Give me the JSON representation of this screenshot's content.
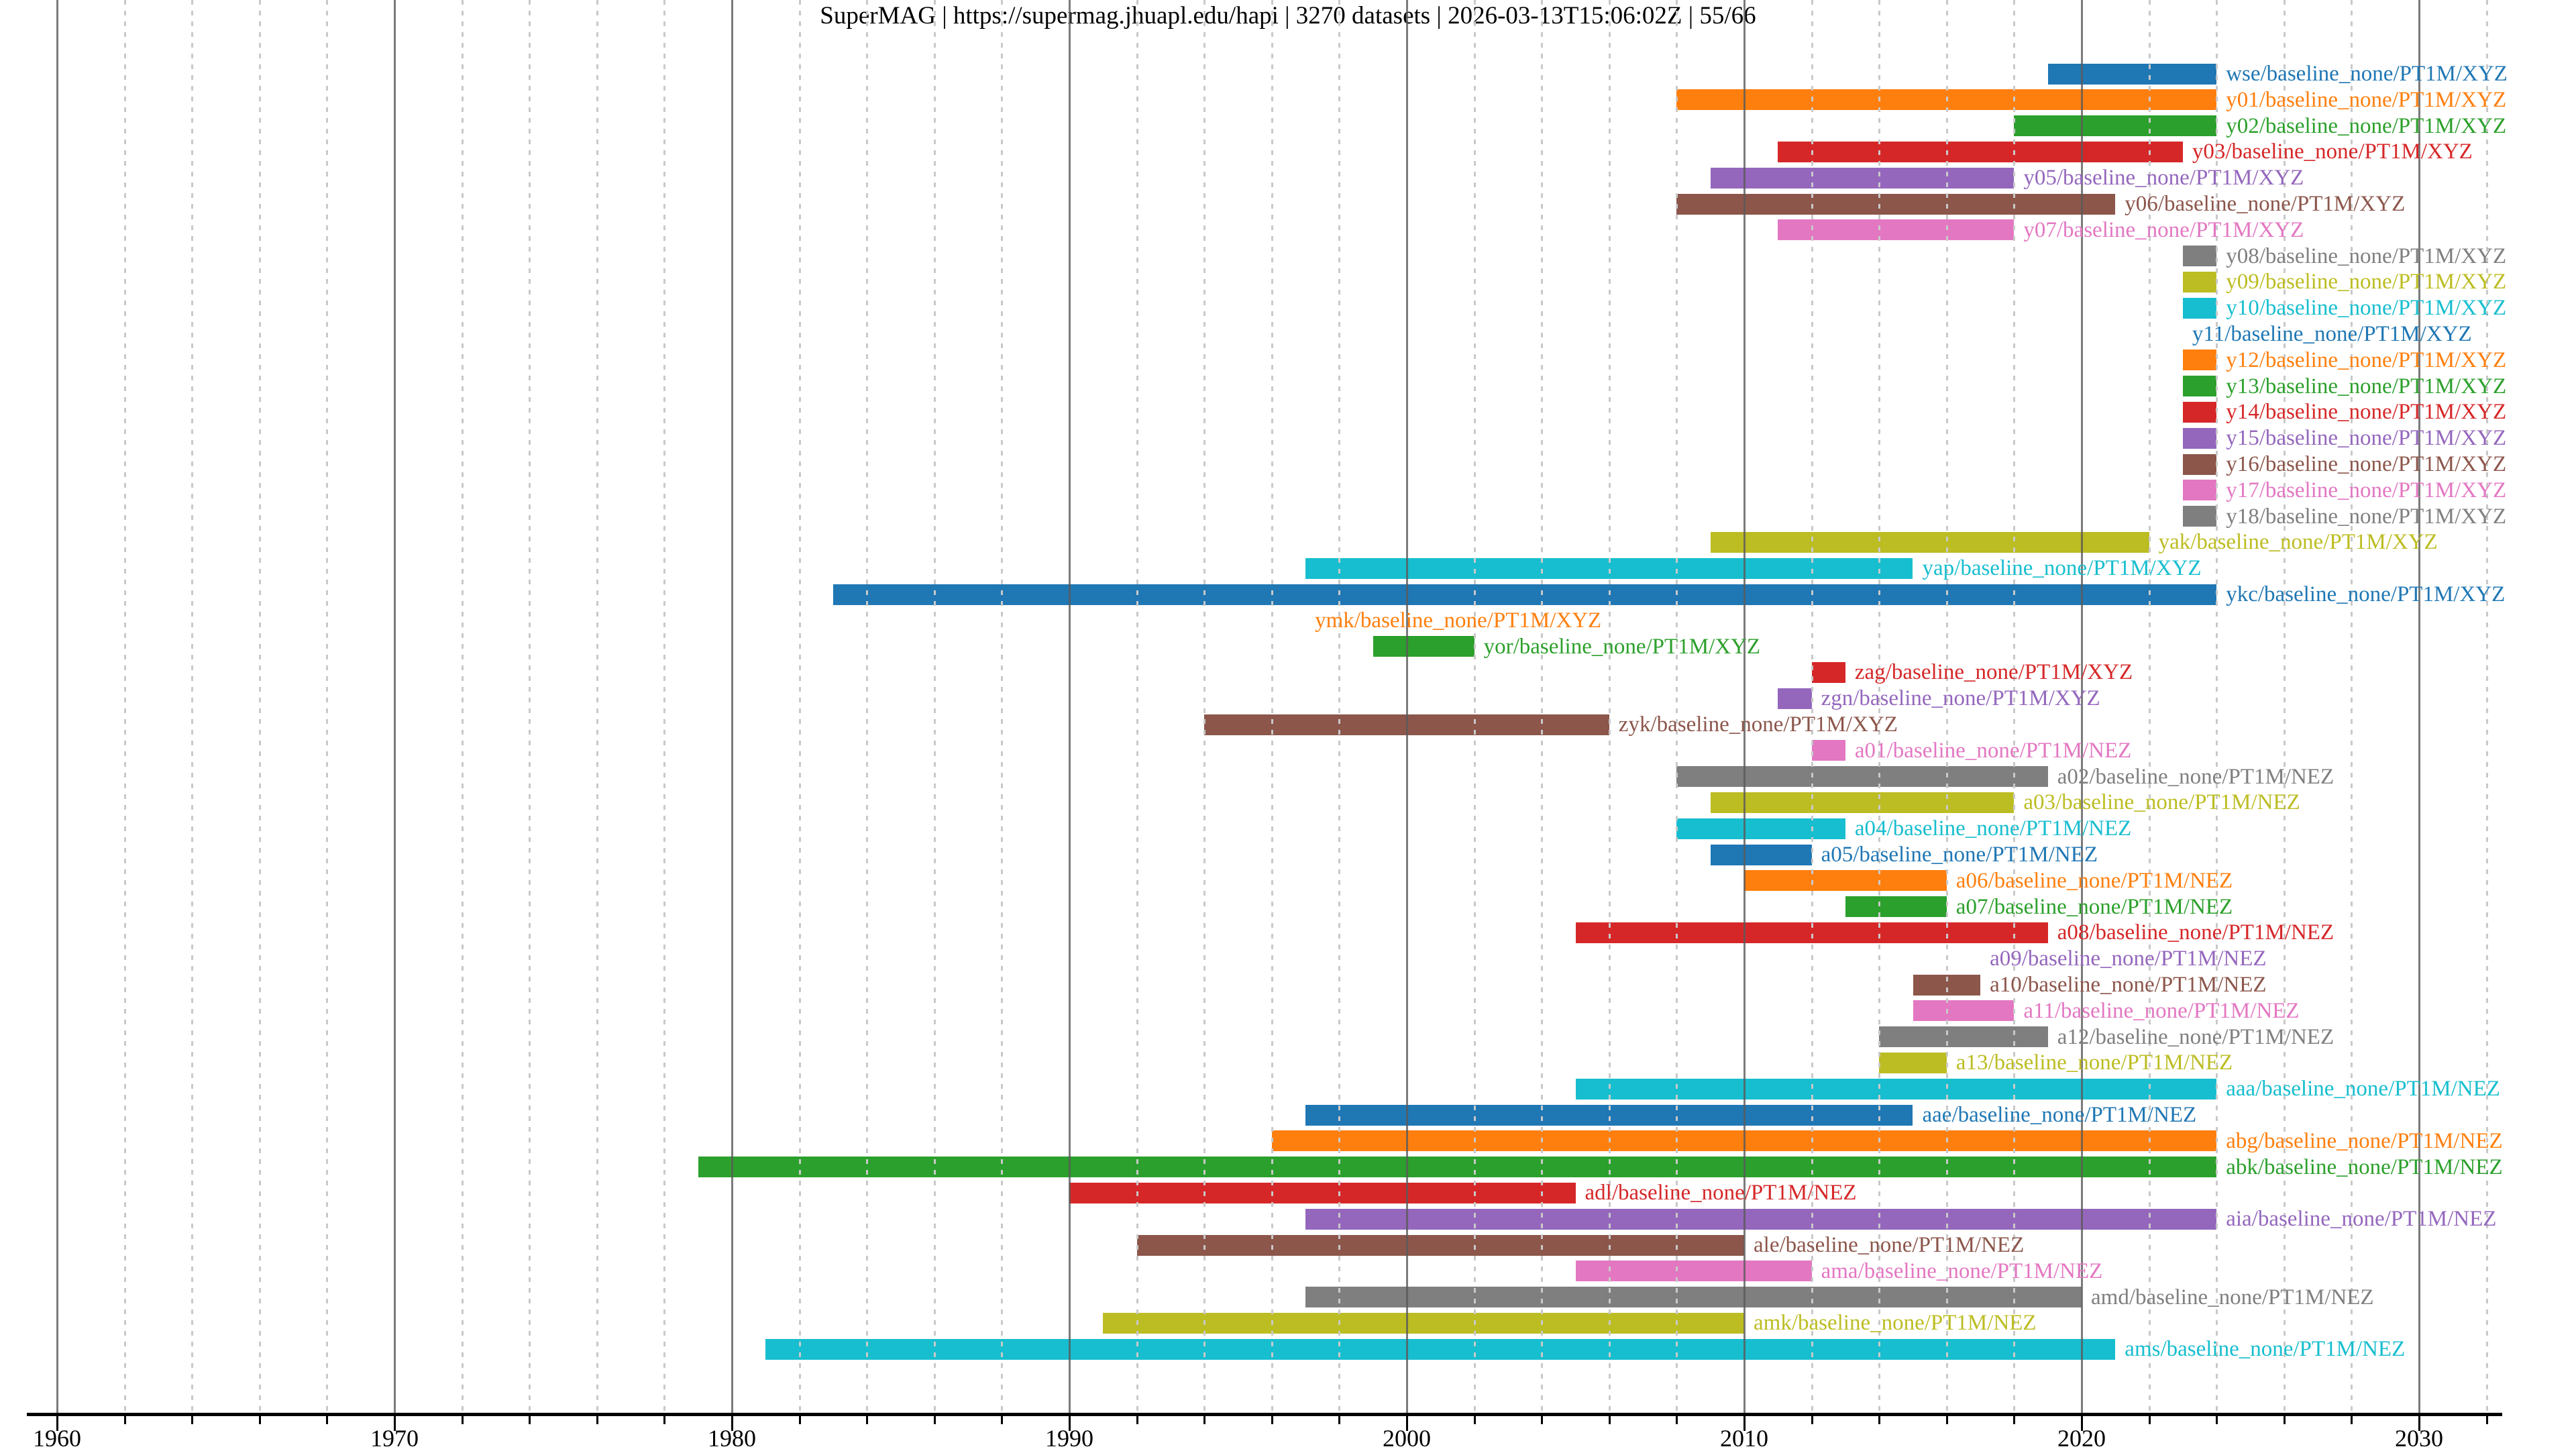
{
  "title": "SuperMAG | https://supermag.jhuapl.edu/hapi | 3270 datasets | 2026-03-13T15:06:02Z | 55/66",
  "chart_data": {
    "type": "bar",
    "subtype": "horizontal-time-availability-gantt",
    "title": "SuperMAG | https://supermag.jhuapl.edu/hapi | 3270 datasets | 2026-03-13T15:06:02Z | 55/66",
    "xlabel": "",
    "ylabel": "",
    "x_axis": {
      "min": 1959,
      "max": 2032,
      "tick_label_years": [
        1960,
        1970,
        1980,
        1990,
        2000,
        2010,
        2020,
        2030
      ],
      "minor_tick_step_years": 2,
      "grid_major_style": "solid gray vertical lines at decades, drawn over bars",
      "grid_minor_style": "dotted light-gray vertical lines at even years"
    },
    "legend": "none (each bar labeled at its right end in the bar color)",
    "palette_tab10": [
      "#1f77b4",
      "#ff7f0e",
      "#2ca02c",
      "#d62728",
      "#9467bd",
      "#8c564b",
      "#e377c2",
      "#7f7f7f",
      "#bcbd22",
      "#17becf"
    ],
    "rows": [
      {
        "label": "wse/baseline_none/PT1M/XYZ",
        "start": 2019,
        "end": 2024,
        "color": "#1f77b4"
      },
      {
        "label": "y01/baseline_none/PT1M/XYZ",
        "start": 2008,
        "end": 2024,
        "color": "#ff7f0e"
      },
      {
        "label": "y02/baseline_none/PT1M/XYZ",
        "start": 2018,
        "end": 2024,
        "color": "#2ca02c"
      },
      {
        "label": "y03/baseline_none/PT1M/XYZ",
        "start": 2011,
        "end": 2023,
        "color": "#d62728"
      },
      {
        "label": "y05/baseline_none/PT1M/XYZ",
        "start": 2009,
        "end": 2018,
        "color": "#9467bd"
      },
      {
        "label": "y06/baseline_none/PT1M/XYZ",
        "start": 2008,
        "end": 2021,
        "color": "#8c564b"
      },
      {
        "label": "y07/baseline_none/PT1M/XYZ",
        "start": 2011,
        "end": 2018,
        "color": "#e377c2"
      },
      {
        "label": "y08/baseline_none/PT1M/XYZ",
        "start": 2023,
        "end": 2024,
        "color": "#7f7f7f"
      },
      {
        "label": "y09/baseline_none/PT1M/XYZ",
        "start": 2023,
        "end": 2024,
        "color": "#bcbd22"
      },
      {
        "label": "y10/baseline_none/PT1M/XYZ",
        "start": 2023,
        "end": 2024,
        "color": "#17becf"
      },
      {
        "label": "y11/baseline_none/PT1M/XYZ",
        "start": 2023,
        "end": 2023,
        "zero_width": true,
        "color": "#1f77b4"
      },
      {
        "label": "y12/baseline_none/PT1M/XYZ",
        "start": 2023,
        "end": 2024,
        "color": "#ff7f0e"
      },
      {
        "label": "y13/baseline_none/PT1M/XYZ",
        "start": 2023,
        "end": 2024,
        "color": "#2ca02c"
      },
      {
        "label": "y14/baseline_none/PT1M/XYZ",
        "start": 2023,
        "end": 2024,
        "color": "#d62728"
      },
      {
        "label": "y15/baseline_none/PT1M/XYZ",
        "start": 2023,
        "end": 2024,
        "color": "#9467bd"
      },
      {
        "label": "y16/baseline_none/PT1M/XYZ",
        "start": 2023,
        "end": 2024,
        "color": "#8c564b"
      },
      {
        "label": "y17/baseline_none/PT1M/XYZ",
        "start": 2023,
        "end": 2024,
        "color": "#e377c2"
      },
      {
        "label": "y18/baseline_none/PT1M/XYZ",
        "start": 2023,
        "end": 2024,
        "color": "#7f7f7f"
      },
      {
        "label": "yak/baseline_none/PT1M/XYZ",
        "start": 2009,
        "end": 2022,
        "color": "#bcbd22"
      },
      {
        "label": "yap/baseline_none/PT1M/XYZ",
        "start": 1997,
        "end": 2015,
        "color": "#17becf"
      },
      {
        "label": "ykc/baseline_none/PT1M/XYZ",
        "start": 1983,
        "end": 2024,
        "color": "#1f77b4"
      },
      {
        "label": "ymk/baseline_none/PT1M/XYZ",
        "start": 1997,
        "end": 1997,
        "zero_width": true,
        "color": "#ff7f0e"
      },
      {
        "label": "yor/baseline_none/PT1M/XYZ",
        "start": 1999,
        "end": 2002,
        "color": "#2ca02c"
      },
      {
        "label": "zag/baseline_none/PT1M/XYZ",
        "start": 2012,
        "end": 2013,
        "color": "#d62728"
      },
      {
        "label": "zgn/baseline_none/PT1M/XYZ",
        "start": 2011,
        "end": 2012,
        "color": "#9467bd"
      },
      {
        "label": "zyk/baseline_none/PT1M/XYZ",
        "start": 1994,
        "end": 2006,
        "color": "#8c564b"
      },
      {
        "label": "a01/baseline_none/PT1M/NEZ",
        "start": 2012,
        "end": 2013,
        "color": "#e377c2"
      },
      {
        "label": "a02/baseline_none/PT1M/NEZ",
        "start": 2008,
        "end": 2019,
        "color": "#7f7f7f"
      },
      {
        "label": "a03/baseline_none/PT1M/NEZ",
        "start": 2009,
        "end": 2018,
        "color": "#bcbd22"
      },
      {
        "label": "a04/baseline_none/PT1M/NEZ",
        "start": 2008,
        "end": 2013,
        "color": "#17becf"
      },
      {
        "label": "a05/baseline_none/PT1M/NEZ",
        "start": 2009,
        "end": 2012,
        "color": "#1f77b4"
      },
      {
        "label": "a06/baseline_none/PT1M/NEZ",
        "start": 2010,
        "end": 2016,
        "color": "#ff7f0e"
      },
      {
        "label": "a07/baseline_none/PT1M/NEZ",
        "start": 2013,
        "end": 2016,
        "color": "#2ca02c"
      },
      {
        "label": "a08/baseline_none/PT1M/NEZ",
        "start": 2005,
        "end": 2019,
        "color": "#d62728"
      },
      {
        "label": "a09/baseline_none/PT1M/NEZ",
        "start": 2017,
        "end": 2017,
        "zero_width": true,
        "color": "#9467bd"
      },
      {
        "label": "a10/baseline_none/PT1M/NEZ",
        "start": 2015,
        "end": 2017,
        "color": "#8c564b"
      },
      {
        "label": "a11/baseline_none/PT1M/NEZ",
        "start": 2015,
        "end": 2018,
        "color": "#e377c2"
      },
      {
        "label": "a12/baseline_none/PT1M/NEZ",
        "start": 2014,
        "end": 2019,
        "color": "#7f7f7f"
      },
      {
        "label": "a13/baseline_none/PT1M/NEZ",
        "start": 2014,
        "end": 2016,
        "color": "#bcbd22"
      },
      {
        "label": "aaa/baseline_none/PT1M/NEZ",
        "start": 2005,
        "end": 2024,
        "color": "#17becf"
      },
      {
        "label": "aae/baseline_none/PT1M/NEZ",
        "start": 1997,
        "end": 2015,
        "color": "#1f77b4"
      },
      {
        "label": "abg/baseline_none/PT1M/NEZ",
        "start": 1996,
        "end": 2024,
        "color": "#ff7f0e"
      },
      {
        "label": "abk/baseline_none/PT1M/NEZ",
        "start": 1979,
        "end": 2024,
        "color": "#2ca02c"
      },
      {
        "label": "adl/baseline_none/PT1M/NEZ",
        "start": 1990,
        "end": 2005,
        "color": "#d62728"
      },
      {
        "label": "aia/baseline_none/PT1M/NEZ",
        "start": 1997,
        "end": 2024,
        "color": "#9467bd"
      },
      {
        "label": "ale/baseline_none/PT1M/NEZ",
        "start": 1992,
        "end": 2010,
        "color": "#8c564b"
      },
      {
        "label": "ama/baseline_none/PT1M/NEZ",
        "start": 2005,
        "end": 2012,
        "color": "#e377c2"
      },
      {
        "label": "amd/baseline_none/PT1M/NEZ",
        "start": 1997,
        "end": 2020,
        "color": "#7f7f7f"
      },
      {
        "label": "amk/baseline_none/PT1M/NEZ",
        "start": 1991,
        "end": 2010,
        "color": "#bcbd22"
      },
      {
        "label": "ams/baseline_none/PT1M/NEZ",
        "start": 1981,
        "end": 2021,
        "color": "#17becf"
      }
    ]
  }
}
